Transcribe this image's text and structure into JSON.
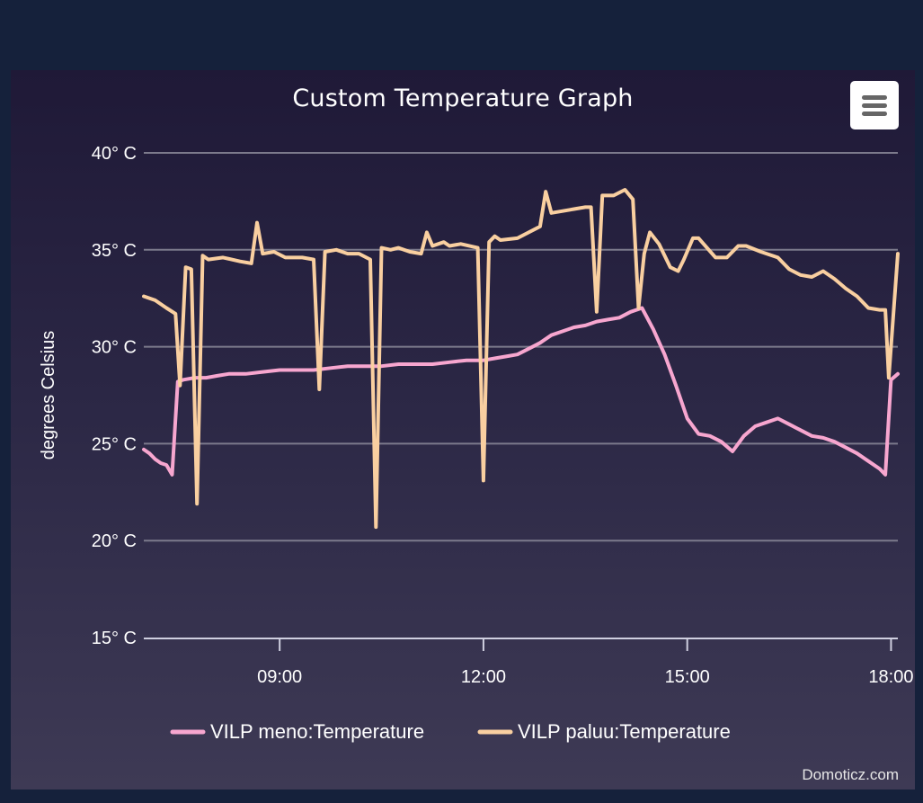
{
  "chart_data": {
    "type": "line",
    "title": "Custom Temperature Graph",
    "ylabel": "degrees Celsius",
    "xlabel": "",
    "ylim": [
      15,
      40
    ],
    "xlim": [
      "07:00",
      "18:06"
    ],
    "yticks": [
      "15° C",
      "20° C",
      "25° C",
      "30° C",
      "35° C",
      "40° C"
    ],
    "yticks_values": [
      15,
      20,
      25,
      30,
      35,
      40
    ],
    "xticks": [
      "09:00",
      "12:00",
      "15:00",
      "18:00"
    ],
    "xticks_values": [
      "09:00",
      "12:00",
      "15:00",
      "18:00"
    ],
    "grid": true,
    "legend_position": "bottom",
    "series": [
      {
        "name": "VILP meno:Temperature",
        "color": "#f7a6cf",
        "points": [
          [
            "07:00",
            24.7
          ],
          [
            "07:05",
            24.5
          ],
          [
            "07:10",
            24.2
          ],
          [
            "07:15",
            24.0
          ],
          [
            "07:20",
            23.9
          ],
          [
            "07:25",
            23.4
          ],
          [
            "07:30",
            28.2
          ],
          [
            "07:35",
            28.3
          ],
          [
            "07:45",
            28.4
          ],
          [
            "07:55",
            28.4
          ],
          [
            "08:05",
            28.5
          ],
          [
            "08:15",
            28.6
          ],
          [
            "08:30",
            28.6
          ],
          [
            "08:45",
            28.7
          ],
          [
            "09:00",
            28.8
          ],
          [
            "09:15",
            28.8
          ],
          [
            "09:30",
            28.8
          ],
          [
            "09:45",
            28.9
          ],
          [
            "10:00",
            29.0
          ],
          [
            "10:15",
            29.0
          ],
          [
            "10:30",
            29.0
          ],
          [
            "10:45",
            29.1
          ],
          [
            "11:00",
            29.1
          ],
          [
            "11:15",
            29.1
          ],
          [
            "11:30",
            29.2
          ],
          [
            "11:45",
            29.3
          ],
          [
            "12:00",
            29.3
          ],
          [
            "12:10",
            29.4
          ],
          [
            "12:20",
            29.5
          ],
          [
            "12:30",
            29.6
          ],
          [
            "12:40",
            29.9
          ],
          [
            "12:50",
            30.2
          ],
          [
            "13:00",
            30.6
          ],
          [
            "13:10",
            30.8
          ],
          [
            "13:20",
            31.0
          ],
          [
            "13:30",
            31.1
          ],
          [
            "13:40",
            31.3
          ],
          [
            "13:50",
            31.4
          ],
          [
            "14:00",
            31.5
          ],
          [
            "14:10",
            31.8
          ],
          [
            "14:20",
            32.0
          ],
          [
            "14:30",
            30.9
          ],
          [
            "14:40",
            29.6
          ],
          [
            "14:50",
            28.0
          ],
          [
            "15:00",
            26.3
          ],
          [
            "15:10",
            25.5
          ],
          [
            "15:20",
            25.4
          ],
          [
            "15:30",
            25.1
          ],
          [
            "15:40",
            24.6
          ],
          [
            "15:50",
            25.4
          ],
          [
            "16:00",
            25.9
          ],
          [
            "16:10",
            26.1
          ],
          [
            "16:20",
            26.3
          ],
          [
            "16:30",
            26.0
          ],
          [
            "16:40",
            25.7
          ],
          [
            "16:50",
            25.4
          ],
          [
            "17:00",
            25.3
          ],
          [
            "17:10",
            25.1
          ],
          [
            "17:20",
            24.8
          ],
          [
            "17:30",
            24.5
          ],
          [
            "17:40",
            24.1
          ],
          [
            "17:50",
            23.7
          ],
          [
            "17:55",
            23.4
          ],
          [
            "18:00",
            28.3
          ],
          [
            "18:06",
            28.6
          ]
        ]
      },
      {
        "name": "VILP paluu:Temperature",
        "color": "#f9cfa0",
        "points": [
          [
            "07:00",
            32.6
          ],
          [
            "07:10",
            32.4
          ],
          [
            "07:20",
            32.0
          ],
          [
            "07:28",
            31.7
          ],
          [
            "07:32",
            28.0
          ],
          [
            "07:37",
            34.1
          ],
          [
            "07:42",
            34.0
          ],
          [
            "07:47",
            21.9
          ],
          [
            "07:52",
            34.7
          ],
          [
            "07:57",
            34.5
          ],
          [
            "08:10",
            34.6
          ],
          [
            "08:25",
            34.4
          ],
          [
            "08:35",
            34.3
          ],
          [
            "08:40",
            36.4
          ],
          [
            "08:45",
            34.8
          ],
          [
            "08:55",
            34.9
          ],
          [
            "09:05",
            34.6
          ],
          [
            "09:20",
            34.6
          ],
          [
            "09:30",
            34.5
          ],
          [
            "09:35",
            27.8
          ],
          [
            "09:40",
            34.9
          ],
          [
            "09:50",
            35.0
          ],
          [
            "10:00",
            34.8
          ],
          [
            "10:10",
            34.8
          ],
          [
            "10:20",
            34.5
          ],
          [
            "10:25",
            20.7
          ],
          [
            "10:30",
            35.1
          ],
          [
            "10:38",
            35.0
          ],
          [
            "10:45",
            35.1
          ],
          [
            "10:55",
            34.9
          ],
          [
            "11:05",
            34.8
          ],
          [
            "11:10",
            35.9
          ],
          [
            "11:15",
            35.2
          ],
          [
            "11:25",
            35.4
          ],
          [
            "11:30",
            35.2
          ],
          [
            "11:40",
            35.3
          ],
          [
            "11:55",
            35.1
          ],
          [
            "12:00",
            23.1
          ],
          [
            "12:05",
            35.4
          ],
          [
            "12:10",
            35.7
          ],
          [
            "12:15",
            35.5
          ],
          [
            "12:30",
            35.6
          ],
          [
            "12:40",
            35.9
          ],
          [
            "12:50",
            36.2
          ],
          [
            "12:55",
            38.0
          ],
          [
            "13:00",
            36.9
          ],
          [
            "13:10",
            37.0
          ],
          [
            "13:20",
            37.1
          ],
          [
            "13:30",
            37.2
          ],
          [
            "13:35",
            37.2
          ],
          [
            "13:40",
            31.8
          ],
          [
            "13:45",
            37.8
          ],
          [
            "13:55",
            37.8
          ],
          [
            "14:05",
            38.1
          ],
          [
            "14:12",
            37.6
          ],
          [
            "14:17",
            32.0
          ],
          [
            "14:22",
            34.8
          ],
          [
            "14:27",
            35.9
          ],
          [
            "14:35",
            35.3
          ],
          [
            "14:45",
            34.1
          ],
          [
            "14:52",
            33.9
          ],
          [
            "14:57",
            34.5
          ],
          [
            "15:05",
            35.6
          ],
          [
            "15:10",
            35.6
          ],
          [
            "15:25",
            34.6
          ],
          [
            "15:35",
            34.6
          ],
          [
            "15:45",
            35.2
          ],
          [
            "15:52",
            35.2
          ],
          [
            "16:05",
            34.9
          ],
          [
            "16:20",
            34.6
          ],
          [
            "16:30",
            34.0
          ],
          [
            "16:40",
            33.7
          ],
          [
            "16:50",
            33.6
          ],
          [
            "17:00",
            33.9
          ],
          [
            "17:10",
            33.5
          ],
          [
            "17:20",
            33.0
          ],
          [
            "17:30",
            32.6
          ],
          [
            "17:40",
            32.0
          ],
          [
            "17:50",
            31.9
          ],
          [
            "17:55",
            31.9
          ],
          [
            "17:58",
            28.4
          ],
          [
            "18:06",
            34.8
          ]
        ]
      }
    ]
  },
  "credits": "Domoticz.com",
  "menu_icon": "hamburger-menu-icon"
}
